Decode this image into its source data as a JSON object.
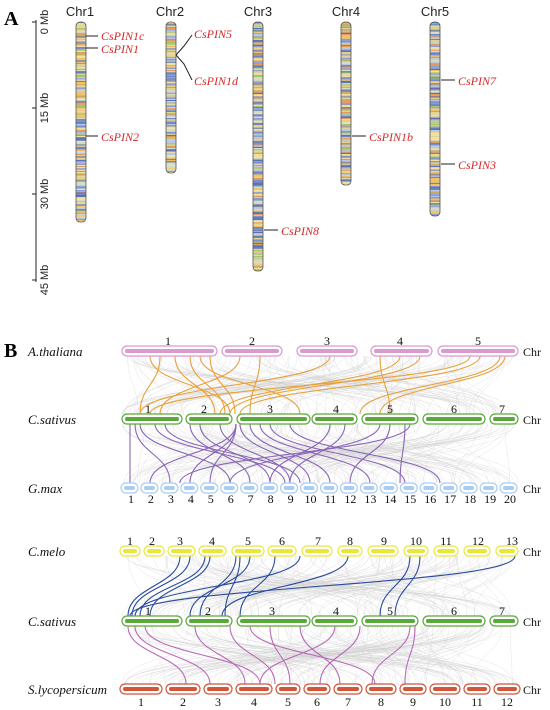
{
  "panel_a": {
    "letter": "A",
    "scale_labels": [
      "0 Mb",
      "15 Mb",
      "30 Mb",
      "45 Mb"
    ],
    "chromosomes": [
      {
        "name": "Chr1",
        "genes": [
          "CsPIN1c",
          "CsPIN1",
          "CsPIN2"
        ]
      },
      {
        "name": "Chr2",
        "genes": [
          "CsPIN5",
          "CsPIN1d"
        ]
      },
      {
        "name": "Chr3",
        "genes": [
          "CsPIN8"
        ]
      },
      {
        "name": "Chr4",
        "genes": [
          "CsPIN1b"
        ]
      },
      {
        "name": "Chr5",
        "genes": [
          "CsPIN7",
          "CsPIN3"
        ]
      }
    ],
    "gene_color": "#d42a2a"
  },
  "panel_b": {
    "letter": "B",
    "chr_suffix": "Chr",
    "species": [
      {
        "name": "A.thaliana",
        "labels": [
          "1",
          "2",
          "3",
          "4",
          "5"
        ],
        "color": "#d89ad0"
      },
      {
        "name": "C.sativus",
        "labels": [
          "1",
          "2",
          "3",
          "4",
          "5",
          "6",
          "7"
        ],
        "color": "#5aa83a"
      },
      {
        "name": "G.max",
        "labels": [
          "1",
          "2",
          "3",
          "4",
          "5",
          "6",
          "7",
          "8",
          "9",
          "10",
          "11",
          "12",
          "13",
          "14",
          "15",
          "16",
          "17",
          "18",
          "19",
          "20"
        ],
        "color": "#a9cdf0"
      },
      {
        "name": "C.melo",
        "labels": [
          "1",
          "2",
          "3",
          "4",
          "5",
          "6",
          "7",
          "8",
          "9",
          "10",
          "11",
          "12",
          "13"
        ],
        "color": "#e8e83a"
      },
      {
        "name": "C.sativus",
        "labels": [
          "1",
          "2",
          "3",
          "4",
          "5",
          "6",
          "7"
        ],
        "color": "#5aa83a"
      },
      {
        "name": "S.lycopersicum",
        "labels": [
          "1",
          "2",
          "3",
          "4",
          "5",
          "6",
          "7",
          "8",
          "9",
          "10",
          "11",
          "12"
        ],
        "color": "#d2553a"
      }
    ],
    "link_colors": {
      "arabidopsis_cucumber": "#e8a13a",
      "cucumber_soybean": "#8a64b8",
      "melon_cucumber": "#2a4aa0",
      "cucumber_tomato": "#b86ab8",
      "background": "#cfcfcf"
    }
  }
}
